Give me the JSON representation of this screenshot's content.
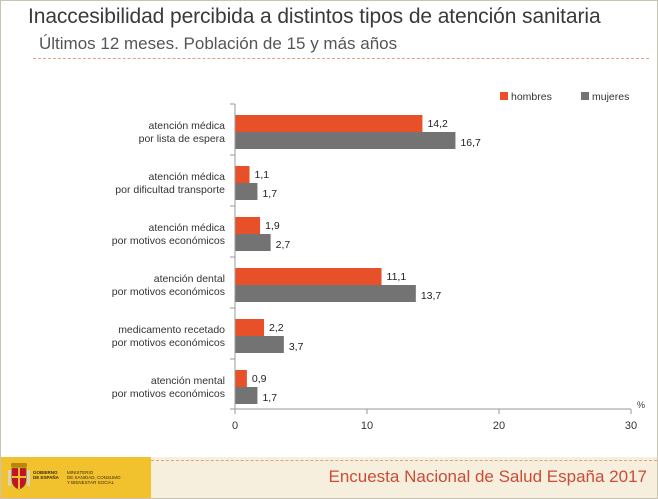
{
  "header": {
    "title": "Inaccesibilidad percibida a distintos tipos de atención sanitaria",
    "subtitle": "Últimos 12 meses. Población de 15 y más años"
  },
  "footer": {
    "survey": "Encuesta Nacional de Salud España 2017",
    "gov_line1": "GOBIERNO",
    "gov_line2": "DE ESPAÑA",
    "ministry_line1": "MINISTERIO",
    "ministry_line2": "DE SANIDAD, CONSUMO",
    "ministry_line3": "Y BIENESTAR SOCIAL"
  },
  "colors": {
    "hombres": "#e8502a",
    "mujeres": "#737373",
    "accent": "#c94d37",
    "footer_band": "#f2c12e"
  },
  "chart_data": {
    "type": "bar",
    "orientation": "horizontal",
    "unit_label": "%",
    "categories": [
      [
        "atención médica",
        "por lista de espera"
      ],
      [
        "atención médica",
        "por dificultad transporte"
      ],
      [
        "atención médica",
        "por motivos económicos"
      ],
      [
        "atención dental",
        "por motivos económicos"
      ],
      [
        "medicamento recetado",
        "por motivos económicos"
      ],
      [
        "atención mental",
        "por motivos económicos"
      ]
    ],
    "series": [
      {
        "name": "hombres",
        "values": [
          14.2,
          1.1,
          1.9,
          11.1,
          2.2,
          0.9
        ],
        "labels": [
          "14,2",
          "1,1",
          "1,9",
          "11,1",
          "2,2",
          "0,9"
        ]
      },
      {
        "name": "mujeres",
        "values": [
          16.7,
          1.7,
          2.7,
          13.7,
          3.7,
          1.7
        ],
        "labels": [
          "16,7",
          "1,7",
          "2,7",
          "13,7",
          "3,7",
          "1,7"
        ]
      }
    ],
    "xlim": [
      0,
      30
    ],
    "xticks": [
      0,
      10,
      20,
      30
    ],
    "grid": false,
    "legend": "top-right"
  }
}
